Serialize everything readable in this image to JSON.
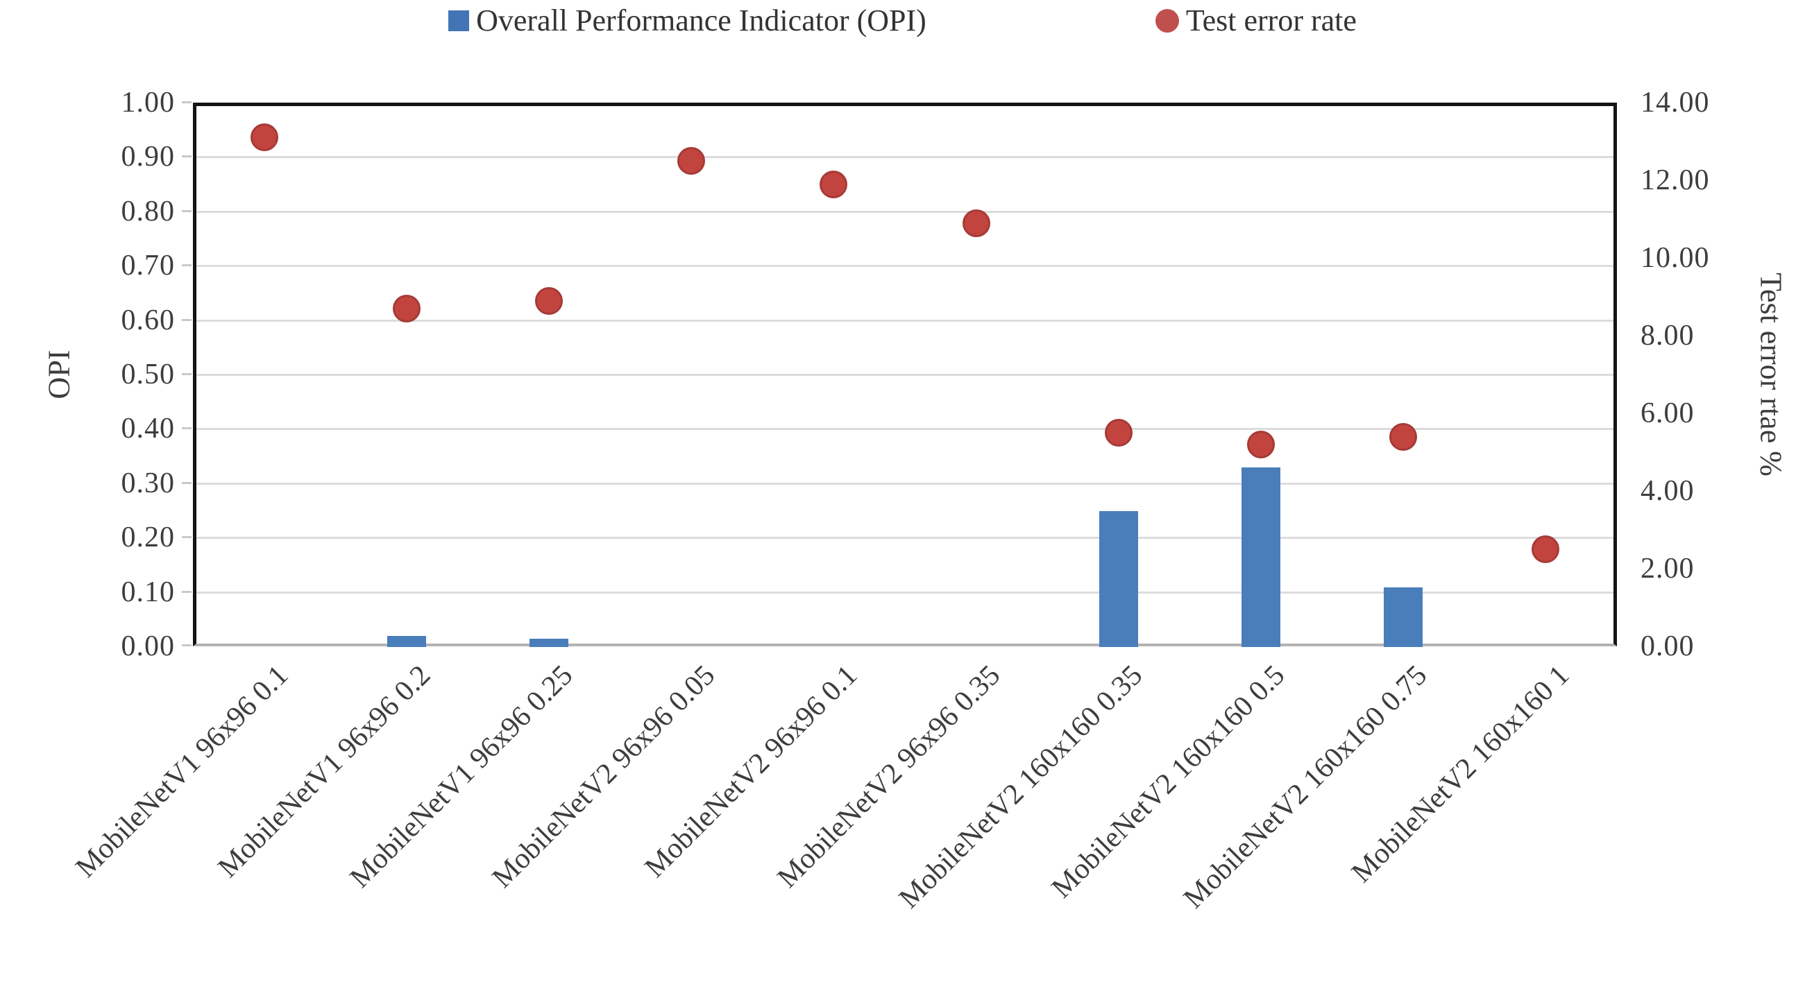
{
  "legend": [
    {
      "label": "Overall Performance Indicator (OPI)",
      "marker": "square",
      "color": "#4374b5"
    },
    {
      "label": "Test error rate",
      "marker": "circle",
      "color": "#c0504d"
    }
  ],
  "left_axis": {
    "title": "OPI",
    "min": 0.0,
    "max": 1.0,
    "step": 0.1,
    "tick_labels": [
      "1.00",
      "0.90",
      "0.80",
      "0.70",
      "0.60",
      "0.50",
      "0.40",
      "0.30",
      "0.20",
      "0.10",
      "0.00"
    ]
  },
  "right_axis": {
    "title": "Test error rtae %",
    "min": 0.0,
    "max": 14.0,
    "step": 2.0,
    "tick_labels": [
      "14.00",
      "12.00",
      "10.00",
      "8.00",
      "6.00",
      "4.00",
      "2.00",
      "0.00"
    ]
  },
  "chart_data": {
    "type": "bar",
    "combo": "bar + scatter markers, dual y-axes",
    "title": "",
    "xlabel": "",
    "ylabel_left": "OPI",
    "ylabel_right": "Test error rtae %",
    "grid": true,
    "legend_position": "top-center",
    "categories": [
      "MobileNetV1 96x96 0.1",
      "MobileNetV1 96x96 0.2",
      "MobileNetV1 96x96 0.25",
      "MobileNetV2 96x96 0.05",
      "MobileNetV2 96x96 0.1",
      "MobileNetV2 96x96 0.35",
      "MobileNetV2 160x160 0.35",
      "MobileNetV2 160x160 0.5",
      "MobileNetV2 160x160 0.75",
      "MobileNetV2 160x160 1"
    ],
    "series": [
      {
        "name": "Overall Performance Indicator (OPI)",
        "type": "bar",
        "axis": "left",
        "color": "#4a7ebb",
        "ylim": [
          0.0,
          1.0
        ],
        "values": [
          0.0,
          0.02,
          0.015,
          0.0,
          0.0,
          0.0,
          0.25,
          0.33,
          0.11,
          0.0
        ]
      },
      {
        "name": "Test error rate",
        "type": "scatter",
        "axis": "right",
        "color": "#c0504d",
        "ylim": [
          0.0,
          14.0
        ],
        "values": [
          13.1,
          8.7,
          8.9,
          12.5,
          11.9,
          10.9,
          5.5,
          5.2,
          5.4,
          2.5
        ]
      }
    ]
  },
  "colors": {
    "bar_blue": "#4a7ebb",
    "marker_red": "#c0504d",
    "gridline": "#dcdcdc",
    "axis_dark": "#141414",
    "text": "#3d3d3d"
  }
}
